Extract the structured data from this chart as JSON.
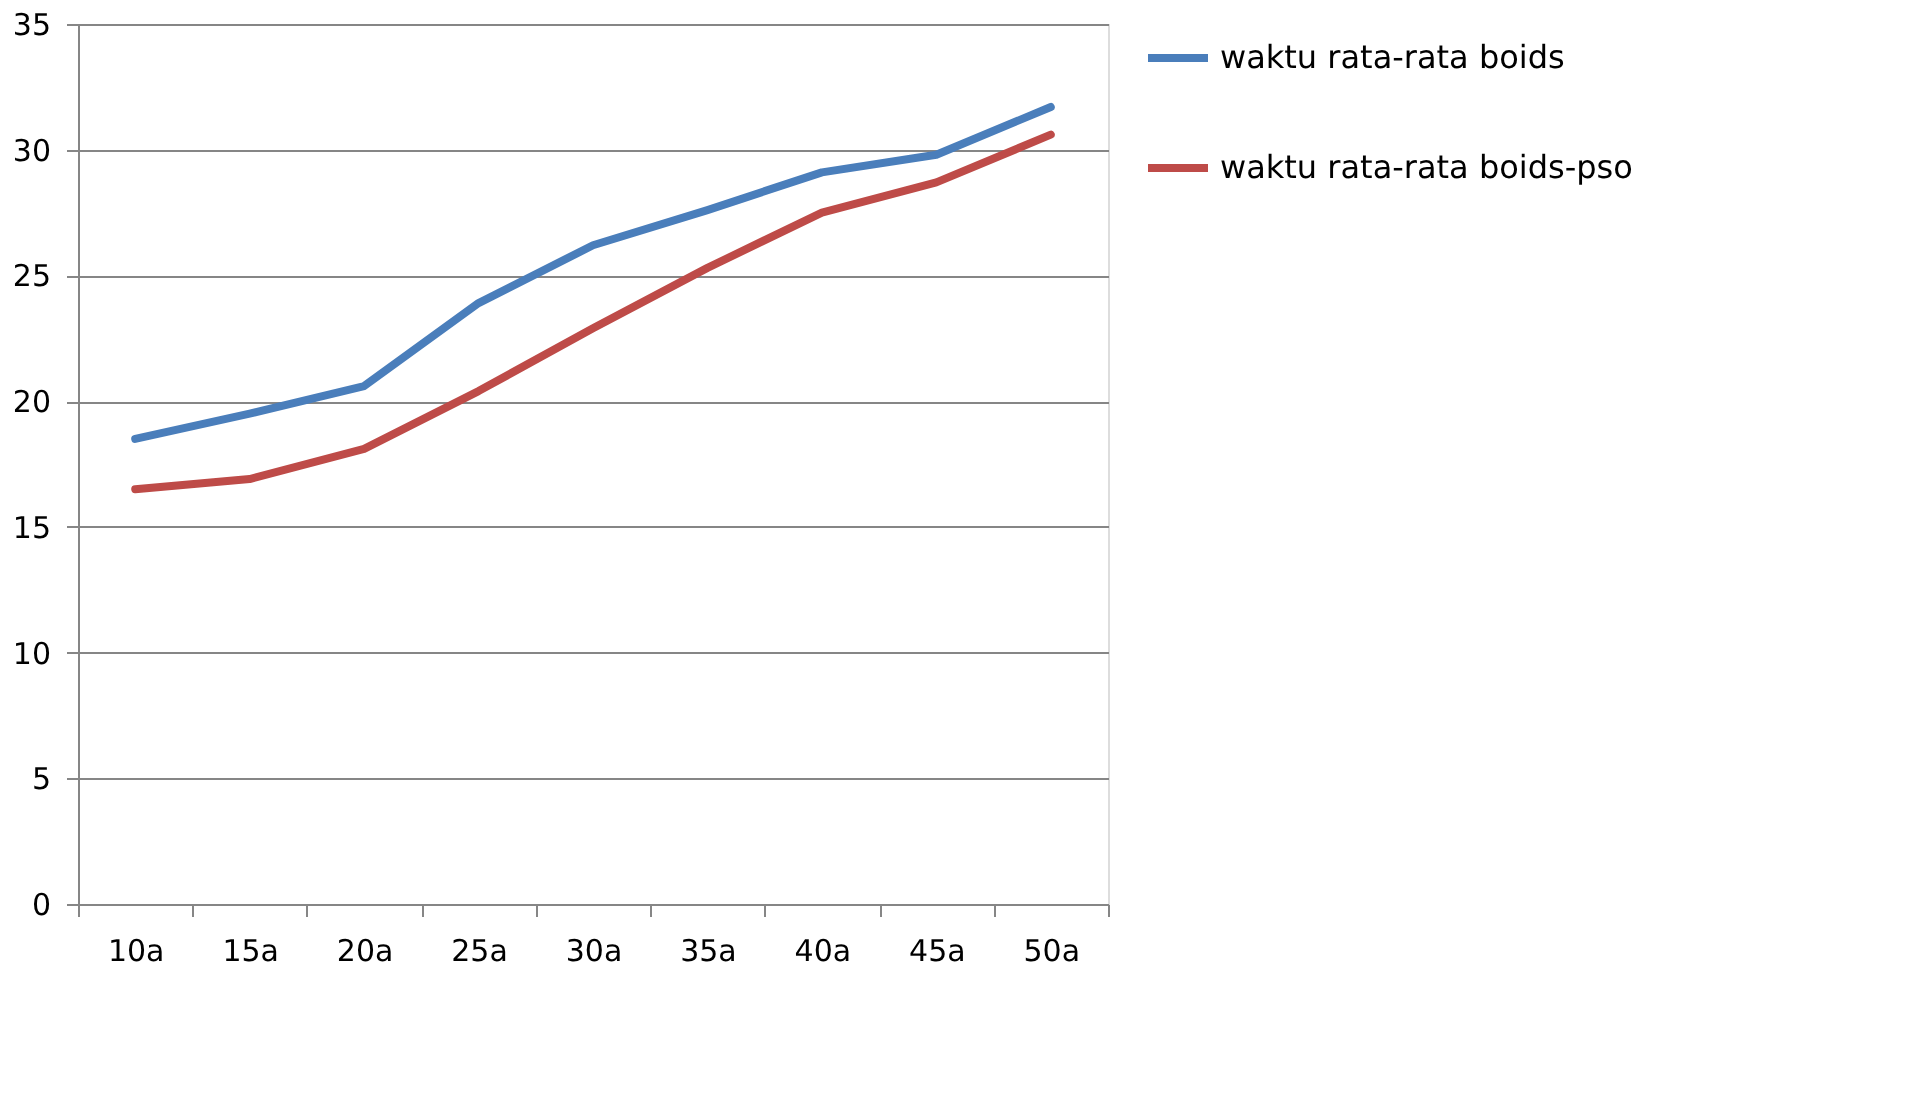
{
  "chart_data": {
    "type": "line",
    "categories": [
      "10a",
      "15a",
      "20a",
      "25a",
      "30a",
      "35a",
      "40a",
      "45a",
      "50a"
    ],
    "series": [
      {
        "name": "waktu rata-rata boids",
        "color": "#4a7ebb",
        "values": [
          18.5,
          19.5,
          20.6,
          23.9,
          26.2,
          27.6,
          29.1,
          29.8,
          31.7
        ]
      },
      {
        "name": "waktu rata-rata boids-pso",
        "color": "#be4b48",
        "values": [
          16.5,
          16.9,
          18.1,
          20.4,
          22.9,
          25.3,
          27.5,
          28.7,
          30.6
        ]
      }
    ],
    "ylim": [
      0,
      35
    ],
    "yticks": [
      0,
      5,
      10,
      15,
      20,
      25,
      30,
      35
    ],
    "grid": "y",
    "legend": "right",
    "marker": "none",
    "line_style": "solid"
  }
}
